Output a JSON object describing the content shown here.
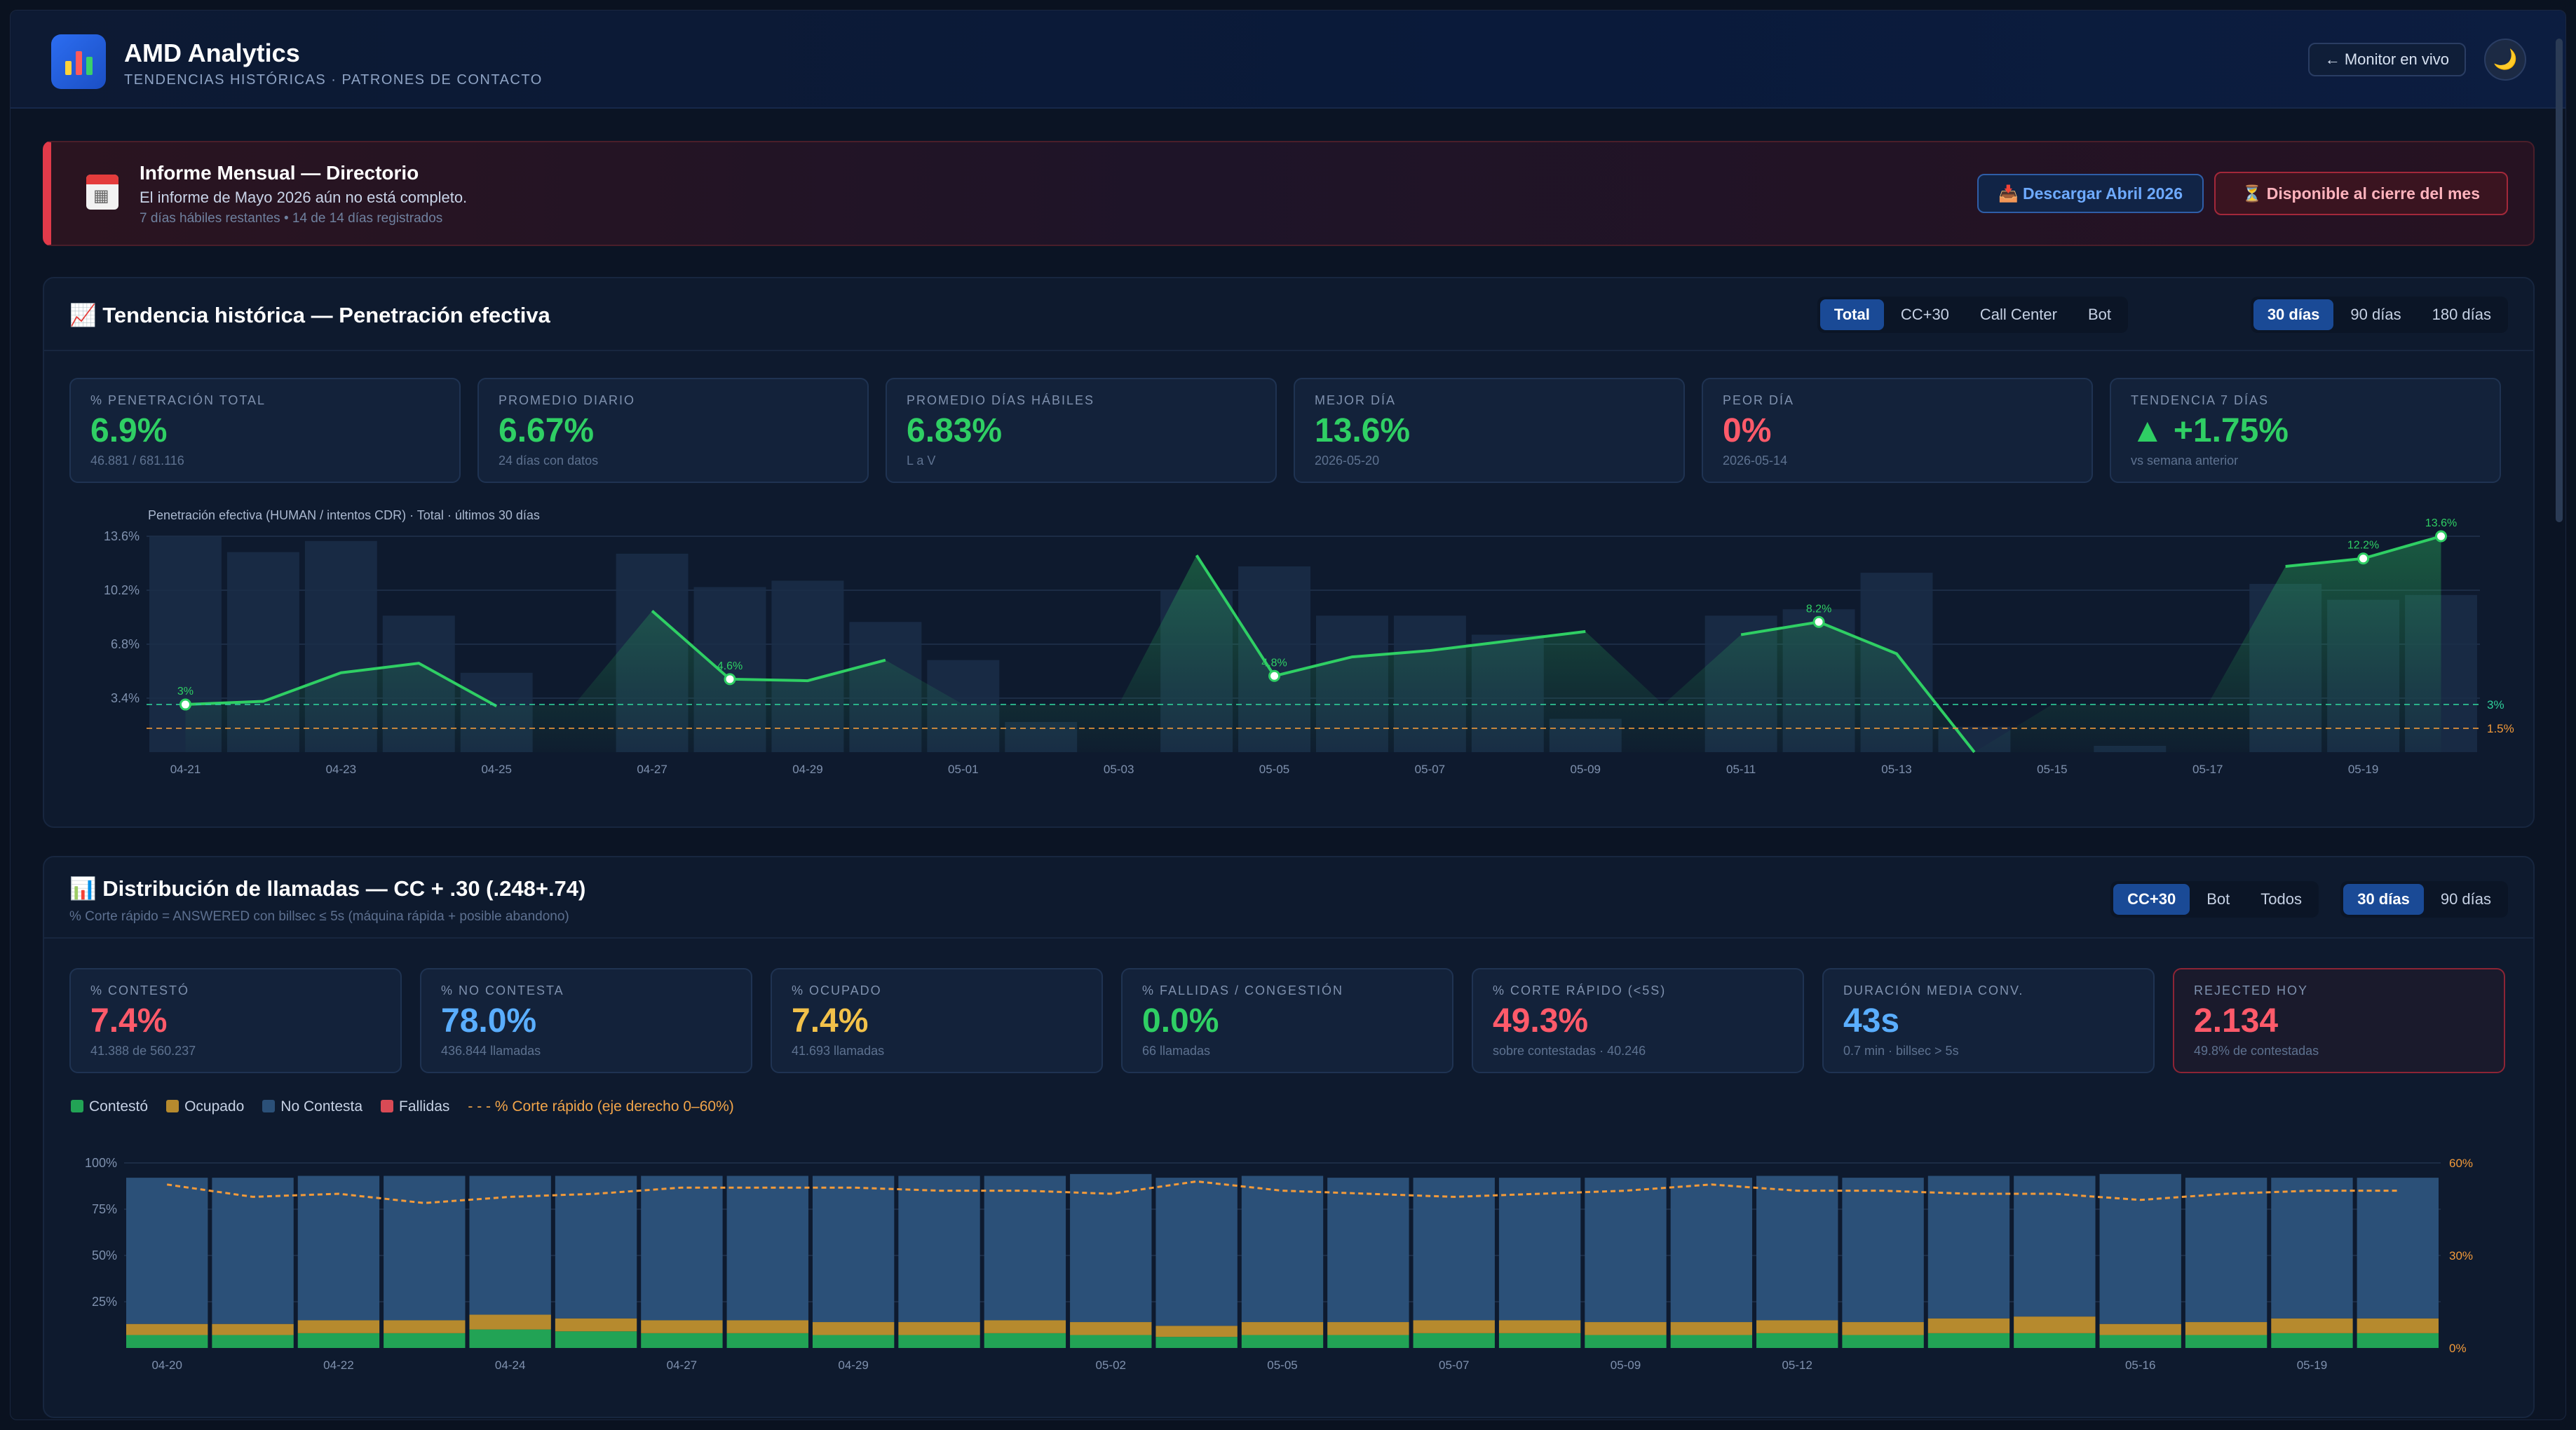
{
  "header": {
    "title": "AMD Analytics",
    "subtitle": "TENDENCIAS HISTÓRICAS · PATRONES DE CONTACTO",
    "monitor_label": "← Monitor en vivo",
    "theme_icon": "🌙"
  },
  "banner": {
    "title": "Informe Mensual — Directorio",
    "message": "El informe de Mayo 2026 aún no está completo.",
    "meta": "7 días hábiles restantes • 14 de 14 días registrados",
    "download_label": "📥 Descargar Abril 2026",
    "available_label": "⏳ Disponible al cierre del mes"
  },
  "trend": {
    "title": "📈 Tendencia histórica — Penetración efectiva",
    "channel_tabs": [
      "Total",
      "CC+30",
      "Call Center",
      "Bot"
    ],
    "channel_active": 0,
    "range_tabs": [
      "30 días",
      "90 días",
      "180 días"
    ],
    "range_active": 0,
    "kpis": [
      {
        "label": "% PENETRACIÓN TOTAL",
        "value": "6.9%",
        "sub": "46.881 / 681.116",
        "color": "g"
      },
      {
        "label": "PROMEDIO DIARIO",
        "value": "6.67%",
        "sub": "24 días con datos",
        "color": "g"
      },
      {
        "label": "PROMEDIO DÍAS HÁBILES",
        "value": "6.83%",
        "sub": "L a V",
        "color": "g"
      },
      {
        "label": "MEJOR DÍA",
        "value": "13.6%",
        "sub": "2026-05-20",
        "color": "g"
      },
      {
        "label": "PEOR DÍA",
        "value": "0%",
        "sub": "2026-05-14",
        "color": "r"
      },
      {
        "label": "TENDENCIA 7 DÍAS",
        "value": "▲ +1.75%",
        "sub": "vs semana anterior",
        "color": "g"
      }
    ]
  },
  "distribution": {
    "title": "📊 Distribución de llamadas — CC + .30 (.248+.74)",
    "subtitle": "% Corte rápido = ANSWERED con billsec ≤ 5s (máquina rápida + posible abandono)",
    "channel_tabs": [
      "CC+30",
      "Bot",
      "Todos"
    ],
    "channel_active": 0,
    "range_tabs": [
      "30 días",
      "90 días"
    ],
    "range_active": 0,
    "kpis": [
      {
        "label": "% CONTESTÓ",
        "value": "7.4%",
        "sub": "41.388 de 560.237",
        "color": "r"
      },
      {
        "label": "% NO CONTESTA",
        "value": "78.0%",
        "sub": "436.844 llamadas",
        "color": "b"
      },
      {
        "label": "% OCUPADO",
        "value": "7.4%",
        "sub": "41.693 llamadas",
        "color": "y"
      },
      {
        "label": "% FALLIDAS / CONGESTIÓN",
        "value": "0.0%",
        "sub": "66 llamadas",
        "color": "g"
      },
      {
        "label": "% CORTE RÁPIDO (<5S)",
        "value": "49.3%",
        "sub": "sobre contestadas · 40.246",
        "color": "r"
      },
      {
        "label": "DURACIÓN MEDIA CONV.",
        "value": "43s",
        "sub": "0.7 min · billsec > 5s",
        "color": "b"
      },
      {
        "label": "REJECTED HOY",
        "value": "2.134",
        "sub": "49.8% de contestadas",
        "color": "r",
        "alert": true
      }
    ],
    "legend": [
      "Contestó",
      "Ocupado",
      "No Contesta",
      "Fallidas",
      "- - - % Corte rápido (eje derecho 0–60%)"
    ]
  },
  "chart_data": [
    {
      "type": "line",
      "title": "Penetración efectiva (HUMAN / intentos CDR) · Total · últimos 30 días",
      "x": [
        "04-21",
        "04-22",
        "04-23",
        "04-24",
        "04-25",
        "04-26",
        "04-27",
        "04-28",
        "04-29",
        "04-30",
        "05-01",
        "05-02",
        "05-03",
        "05-04",
        "05-05",
        "05-06",
        "05-07",
        "05-08",
        "05-09",
        "05-10",
        "05-11",
        "05-12",
        "05-13",
        "05-14",
        "05-15",
        "05-16",
        "05-17",
        "05-18",
        "05-19",
        "05-20"
      ],
      "x_tick_labels": [
        "04-21",
        "04-23",
        "04-25",
        "04-27",
        "04-29",
        "05-01",
        "05-03",
        "05-05",
        "05-07",
        "05-09",
        "05-11",
        "05-13",
        "05-15",
        "05-17",
        "05-19"
      ],
      "yticks": [
        "3.4%",
        "6.8%",
        "10.2%",
        "13.6%"
      ],
      "ylim": [
        0,
        13.6
      ],
      "series": [
        {
          "values": [
            3.0,
            3.2,
            5.0,
            5.6,
            2.9,
            null,
            8.9,
            4.6,
            4.5,
            5.8,
            null,
            null,
            null,
            12.4,
            4.8,
            6.0,
            6.4,
            7.0,
            7.6,
            null,
            7.4,
            8.2,
            6.2,
            0.0,
            null,
            null,
            null,
            11.7,
            12.2,
            13.6
          ]
        }
      ],
      "bars": [
        13.6,
        12.6,
        13.3,
        8.6,
        5.0,
        0,
        12.5,
        10.4,
        10.8,
        8.2,
        5.8,
        1.9,
        0,
        10.2,
        11.7,
        8.6,
        8.6,
        7.4,
        2.1,
        0,
        8.6,
        9.0,
        11.3,
        1.6,
        0,
        0.4,
        0,
        10.6,
        9.6,
        9.9
      ],
      "point_labels": [
        {
          "x": "04-21",
          "text": "3%"
        },
        {
          "x": "04-28",
          "text": "4.6%"
        },
        {
          "x": "05-05",
          "text": "4.8%"
        },
        {
          "x": "05-12",
          "text": "8.2%"
        },
        {
          "x": "05-19",
          "text": "12.2%"
        },
        {
          "x": "05-20",
          "text": "13.6%"
        }
      ],
      "reference_lines": [
        {
          "value": 3.0,
          "label": "3%",
          "color": "#2fcf9a"
        },
        {
          "value": 1.5,
          "label": "1.5%",
          "color": "#f29a3a"
        }
      ]
    },
    {
      "type": "bar",
      "stacked": true,
      "x": [
        "04-20",
        "04-21",
        "04-22",
        "04-23",
        "04-24",
        "04-25",
        "04-27",
        "04-28",
        "04-29",
        "04-30",
        "05-01",
        "05-02",
        "05-04",
        "05-05",
        "05-06",
        "05-07",
        "05-08",
        "05-09",
        "05-11",
        "05-12",
        "05-13",
        "05-14",
        "05-15",
        "05-16",
        "05-18",
        "05-19",
        "05-20"
      ],
      "x_tick_labels": [
        "04-20",
        "04-22",
        "04-24",
        "04-27",
        "04-29",
        "05-02",
        "05-05",
        "05-07",
        "05-09",
        "05-12",
        "05-16",
        "05-19"
      ],
      "yticks_left": [
        "25%",
        "50%",
        "75%",
        "100%"
      ],
      "yticks_right": [
        "0%",
        "30%",
        "60%"
      ],
      "series": [
        {
          "name": "Contestó",
          "color": "#22a355",
          "values": [
            7,
            7,
            8,
            8,
            10,
            9,
            8,
            8,
            7,
            7,
            8,
            7,
            6,
            7,
            7,
            8,
            8,
            7,
            7,
            8,
            7,
            8,
            8,
            7,
            7,
            8,
            8
          ]
        },
        {
          "name": "Ocupado",
          "color": "#b68a2e",
          "values": [
            6,
            6,
            7,
            7,
            8,
            7,
            7,
            7,
            7,
            7,
            7,
            7,
            6,
            7,
            7,
            7,
            7,
            7,
            7,
            7,
            7,
            8,
            9,
            6,
            7,
            8,
            8
          ]
        },
        {
          "name": "No Contesta",
          "color": "#2b5078",
          "values": [
            79,
            79,
            78,
            78,
            75,
            77,
            78,
            78,
            79,
            79,
            78,
            80,
            80,
            79,
            78,
            77,
            77,
            78,
            78,
            78,
            78,
            77,
            76,
            81,
            78,
            76,
            76
          ]
        },
        {
          "name": "Fallidas",
          "color": "#d94a55",
          "values": [
            0,
            0,
            0,
            0,
            0,
            0,
            0,
            0,
            0,
            0,
            0,
            0,
            0,
            0,
            0,
            0,
            0,
            0,
            0,
            0,
            0,
            0,
            0,
            0,
            0,
            0,
            0
          ]
        },
        {
          "name": "% Corte rápido",
          "color": "#f29a3a",
          "axis": "right",
          "values": [
            53,
            49,
            50,
            47,
            49,
            50,
            52,
            52,
            52,
            51,
            51,
            50,
            54,
            51,
            50,
            49,
            50,
            51,
            53,
            51,
            51,
            50,
            50,
            48,
            50,
            51,
            51
          ]
        }
      ]
    }
  ]
}
